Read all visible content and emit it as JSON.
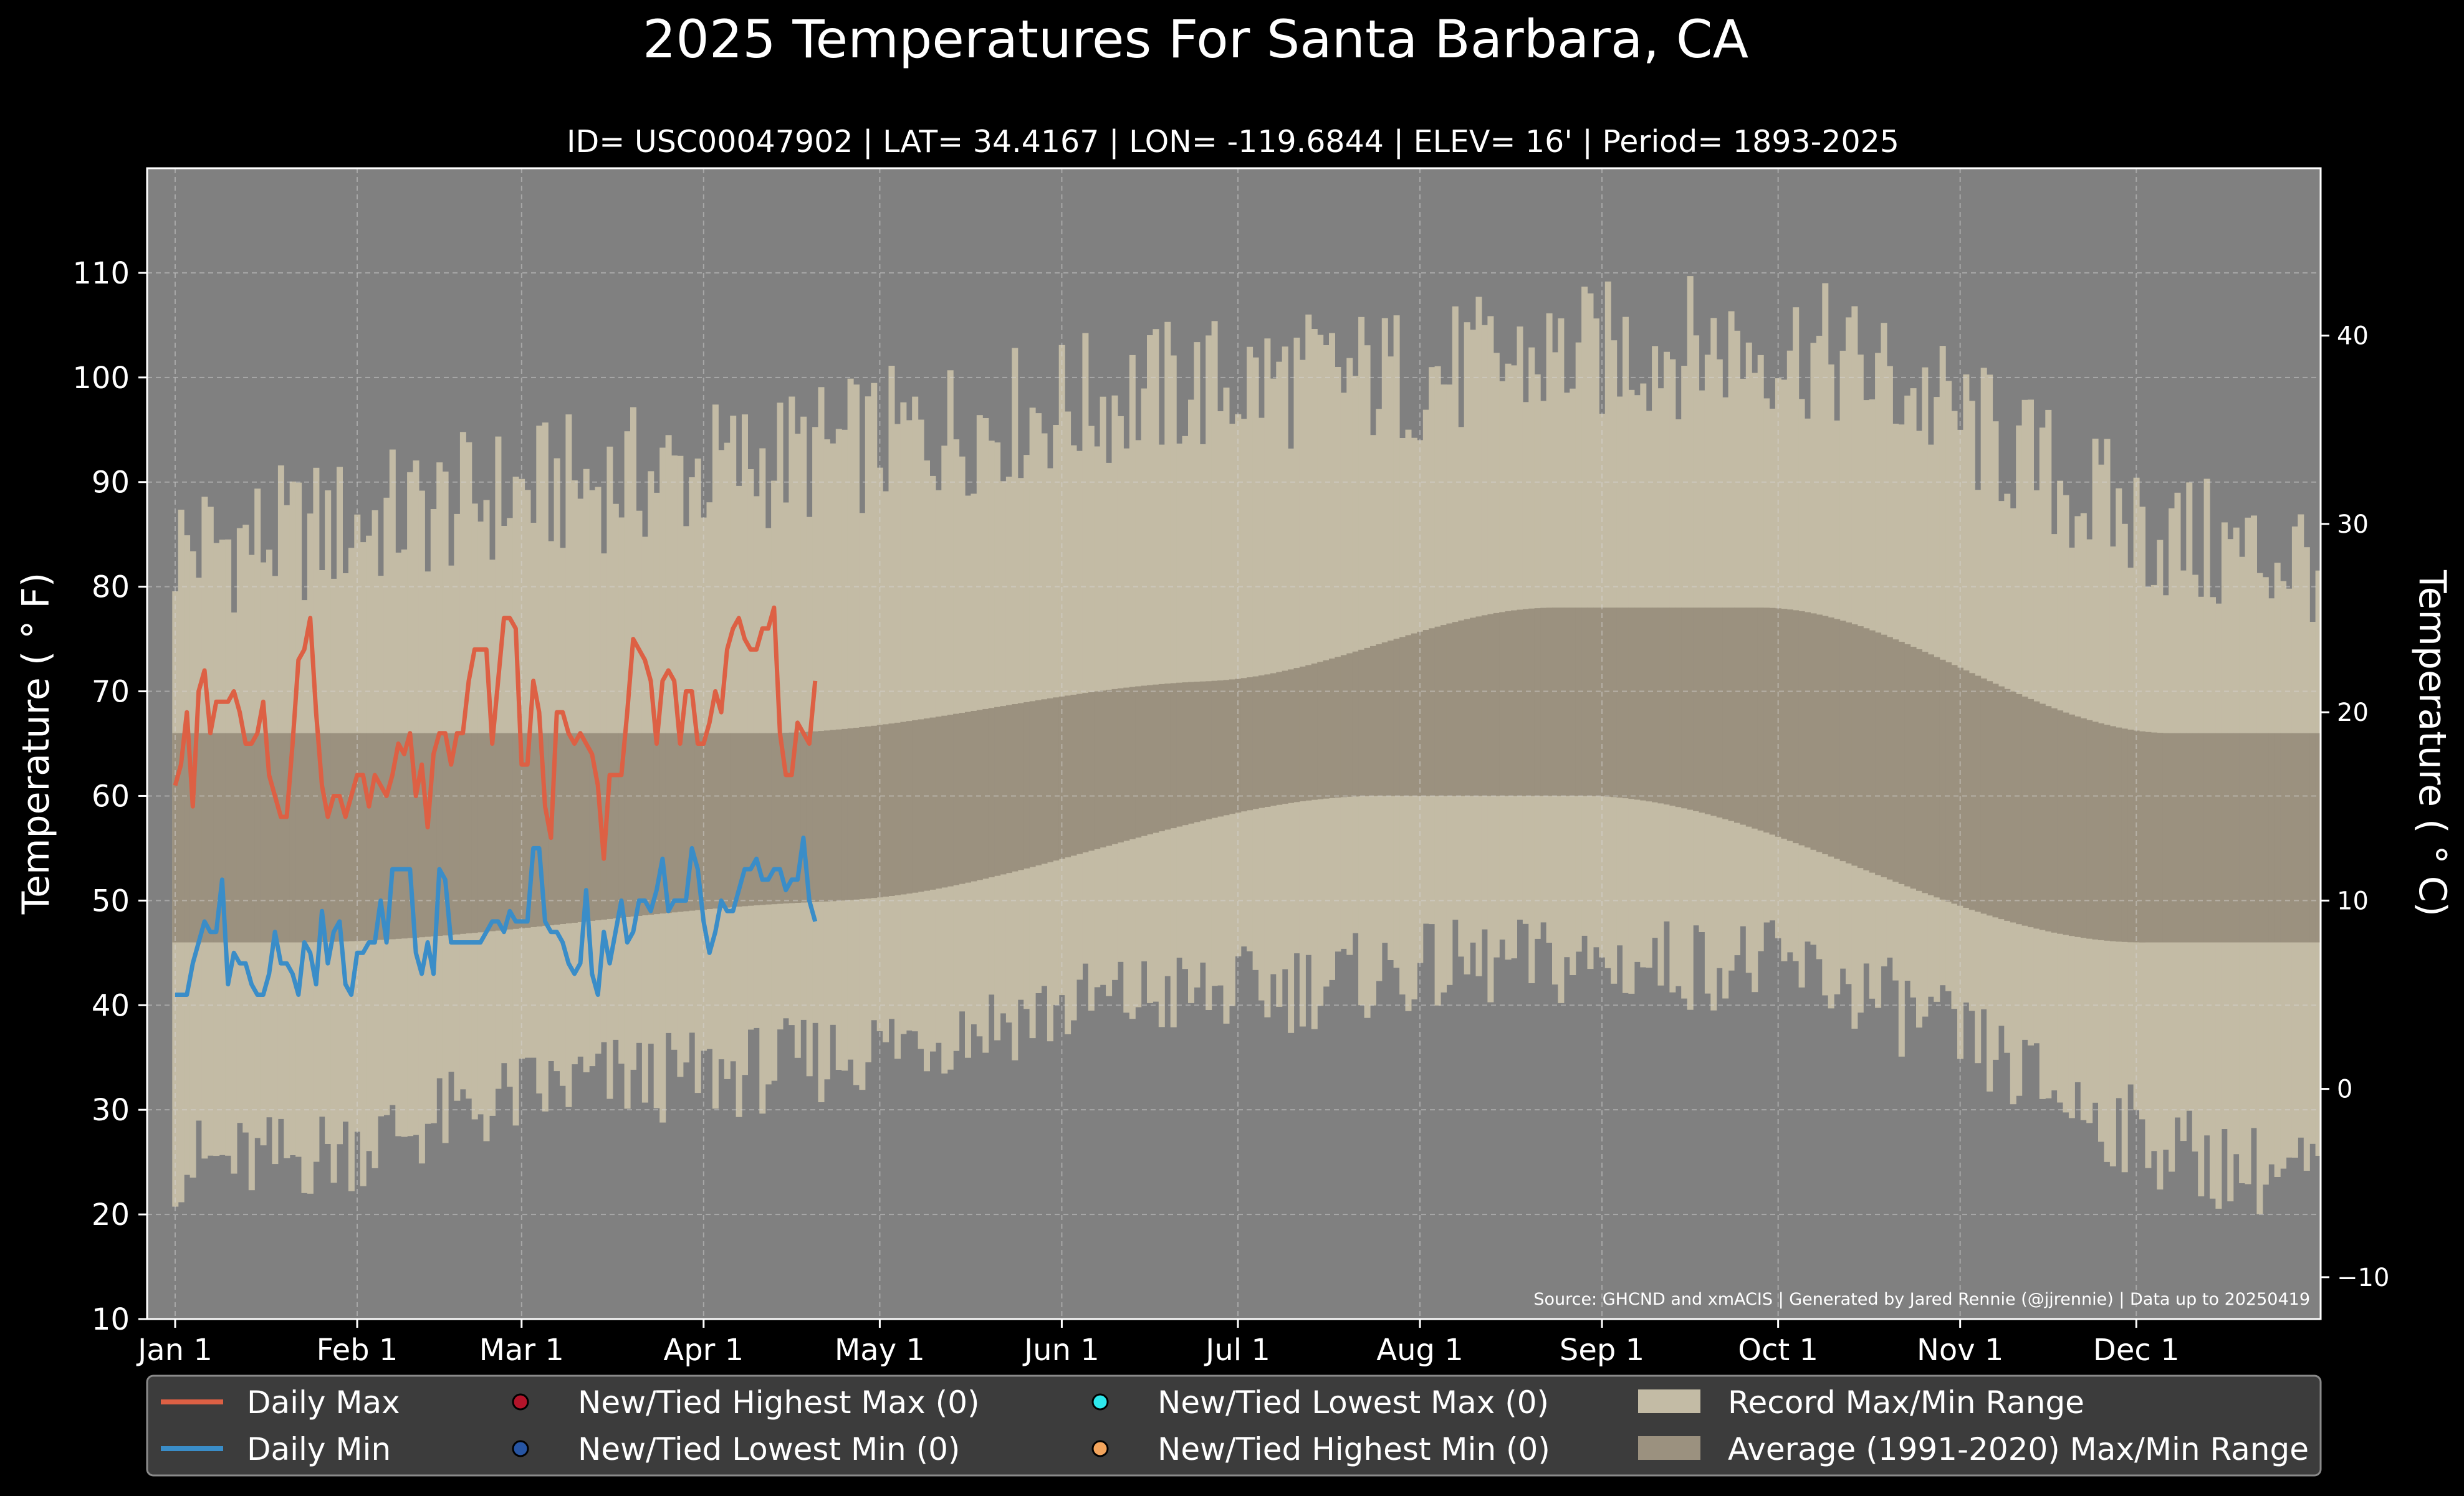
{
  "chart_data": {
    "type": "line",
    "title": "2025 Temperatures For Santa Barbara, CA",
    "subtitle": "ID= USC00047902 | LAT= 34.4167 | LON= -119.6844 | ELEV= 16' | Period= 1893-2025",
    "ylabel": "Temperature ( ° F)",
    "ylabel_right": "Temperature ( ° C)",
    "source_note": "Source: GHCND and xmACIS | Generated by Jared Rennie (@jjrennie) | Data up to 20250419",
    "ylim": [
      10,
      120
    ],
    "ylim_right": [
      -12.2,
      48.9
    ],
    "grid": true,
    "legend_position": "bottom",
    "colors": {
      "background": "#000000",
      "plot_bg": "#808080",
      "record_band": "#c3bba5",
      "normal_band": "#9b917f",
      "daily_max": "#dd6044",
      "daily_min": "#3a8dc8",
      "new_high_max": "#b3142a",
      "new_low_min": "#2755a3",
      "new_low_max": "#2ee8ec",
      "new_high_min": "#f3a45c",
      "legend_bg": "#3c3c3c"
    },
    "x_ticks": [
      {
        "label": "Jan 1",
        "day": 0
      },
      {
        "label": "Feb 1",
        "day": 31
      },
      {
        "label": "Mar 1",
        "day": 59
      },
      {
        "label": "Apr 1",
        "day": 90
      },
      {
        "label": "May 1",
        "day": 120
      },
      {
        "label": "Jun 1",
        "day": 151
      },
      {
        "label": "Jul 1",
        "day": 181
      },
      {
        "label": "Aug 1",
        "day": 212
      },
      {
        "label": "Sep 1",
        "day": 243
      },
      {
        "label": "Oct 1",
        "day": 273
      },
      {
        "label": "Nov 1",
        "day": 304
      },
      {
        "label": "Dec 1",
        "day": 334
      }
    ],
    "y_ticks": [
      10,
      20,
      30,
      40,
      50,
      60,
      70,
      80,
      90,
      100,
      110
    ],
    "y_ticks_right": [
      -10,
      0,
      10,
      20,
      30,
      40
    ],
    "series": [
      {
        "name": "Daily Max",
        "values": [
          61,
          63,
          68,
          59,
          70,
          72,
          66,
          69,
          69,
          69,
          70,
          68,
          65,
          65,
          66,
          69,
          62,
          60,
          58,
          58,
          65,
          73,
          74,
          77,
          68,
          61,
          58,
          60,
          60,
          58,
          60,
          62,
          62,
          59,
          62,
          61,
          60,
          62,
          65,
          64,
          66,
          60,
          63,
          57,
          64,
          66,
          66,
          63,
          66,
          66,
          71,
          74,
          74,
          74,
          65,
          71,
          77,
          77,
          76,
          63,
          63,
          71,
          68,
          59,
          56,
          68,
          68,
          66,
          65,
          66,
          65,
          64,
          61,
          54,
          62,
          62,
          62,
          68,
          75,
          74,
          73,
          71,
          65,
          71,
          72,
          71,
          65,
          70,
          70,
          65,
          65,
          67,
          70,
          68,
          74,
          76,
          77,
          75,
          74,
          74,
          76,
          76,
          78,
          66,
          62,
          62,
          67,
          66,
          65,
          71
        ]
      },
      {
        "name": "Daily Min",
        "values": [
          41,
          41,
          41,
          44,
          46,
          48,
          47,
          47,
          52,
          42,
          45,
          44,
          44,
          42,
          41,
          41,
          43,
          47,
          44,
          44,
          43,
          41,
          46,
          45,
          42,
          49,
          44,
          47,
          48,
          42,
          41,
          45,
          45,
          46,
          46,
          50,
          46,
          53,
          53,
          53,
          53,
          45,
          43,
          46,
          43,
          53,
          52,
          46,
          46,
          46,
          46,
          46,
          46,
          47,
          48,
          48,
          47,
          49,
          48,
          48,
          48,
          55,
          55,
          48,
          47,
          47,
          46,
          44,
          43,
          44,
          51,
          43,
          41,
          47,
          44,
          47,
          50,
          46,
          47,
          50,
          50,
          49,
          51,
          54,
          49,
          50,
          50,
          50,
          55,
          53,
          48,
          45,
          47,
          50,
          49,
          49,
          51,
          53,
          53,
          54,
          52,
          52,
          53,
          53,
          51,
          52,
          52,
          56,
          50,
          48
        ]
      }
    ],
    "daily_max_first_day": 0,
    "daily_min_first_day": 0,
    "record_range_note": "Record Max/Min Range",
    "average_range_note": "Average (1991-2020) Max/Min Range",
    "legend": [
      {
        "label": "Daily Max",
        "kind": "line",
        "color": "#dd6044"
      },
      {
        "label": "Daily Min",
        "kind": "line",
        "color": "#3a8dc8"
      },
      {
        "label": "New/Tied Highest Max (0)",
        "kind": "dot",
        "color": "#b3142a"
      },
      {
        "label": "New/Tied Lowest Min (0)",
        "kind": "dot",
        "color": "#2755a3"
      },
      {
        "label": "New/Tied Lowest Max (0)",
        "kind": "dot",
        "color": "#2ee8ec"
      },
      {
        "label": "New/Tied Highest Min (0)",
        "kind": "dot",
        "color": "#f3a45c"
      },
      {
        "label": "Record Max/Min Range",
        "kind": "patch",
        "color": "#c3bba5"
      },
      {
        "label": "Average (1991-2020) Max/Min Range",
        "kind": "patch",
        "color": "#9b917f"
      }
    ]
  }
}
